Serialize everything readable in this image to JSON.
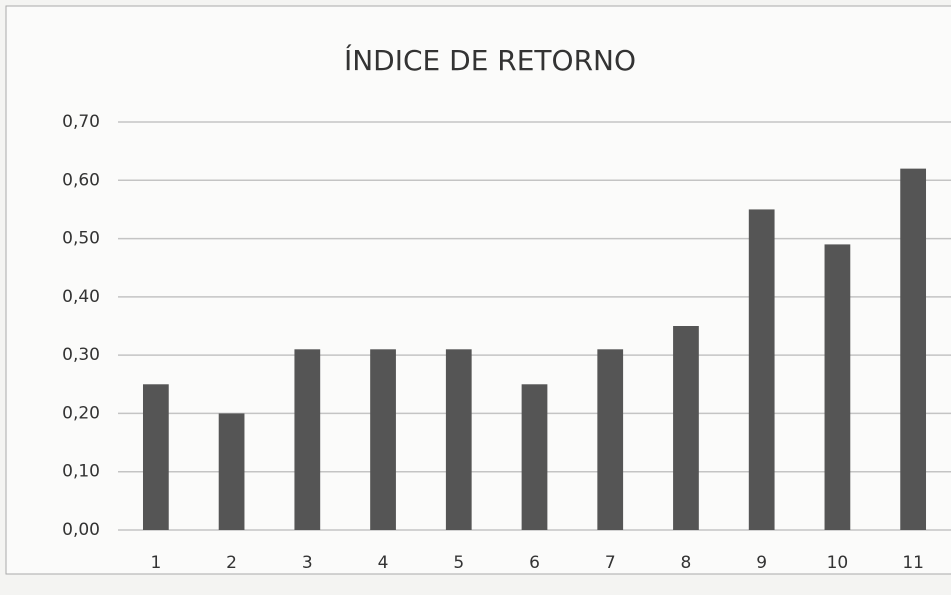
{
  "chart_data": {
    "type": "bar",
    "title": "ÍNDICE DE RETORNO",
    "categories": [
      "1",
      "2",
      "3",
      "4",
      "5",
      "6",
      "7",
      "8",
      "9",
      "10",
      "11"
    ],
    "values": [
      0.25,
      0.2,
      0.31,
      0.31,
      0.31,
      0.25,
      0.31,
      0.35,
      0.55,
      0.49,
      0.62
    ],
    "color": "#555555",
    "ylim": [
      0,
      0.7
    ],
    "yticks": [
      {
        "value": 0,
        "label": "0,00"
      },
      {
        "value": 0.1,
        "label": "0,10"
      },
      {
        "value": 0.2,
        "label": "0,20"
      },
      {
        "value": 0.3,
        "label": "0,30"
      },
      {
        "value": 0.4,
        "label": "0,40"
      },
      {
        "value": 0.5,
        "label": "0,50"
      },
      {
        "value": 0.6,
        "label": "0,60"
      },
      {
        "value": 0.7,
        "label": "0,70"
      }
    ],
    "grid": true
  }
}
